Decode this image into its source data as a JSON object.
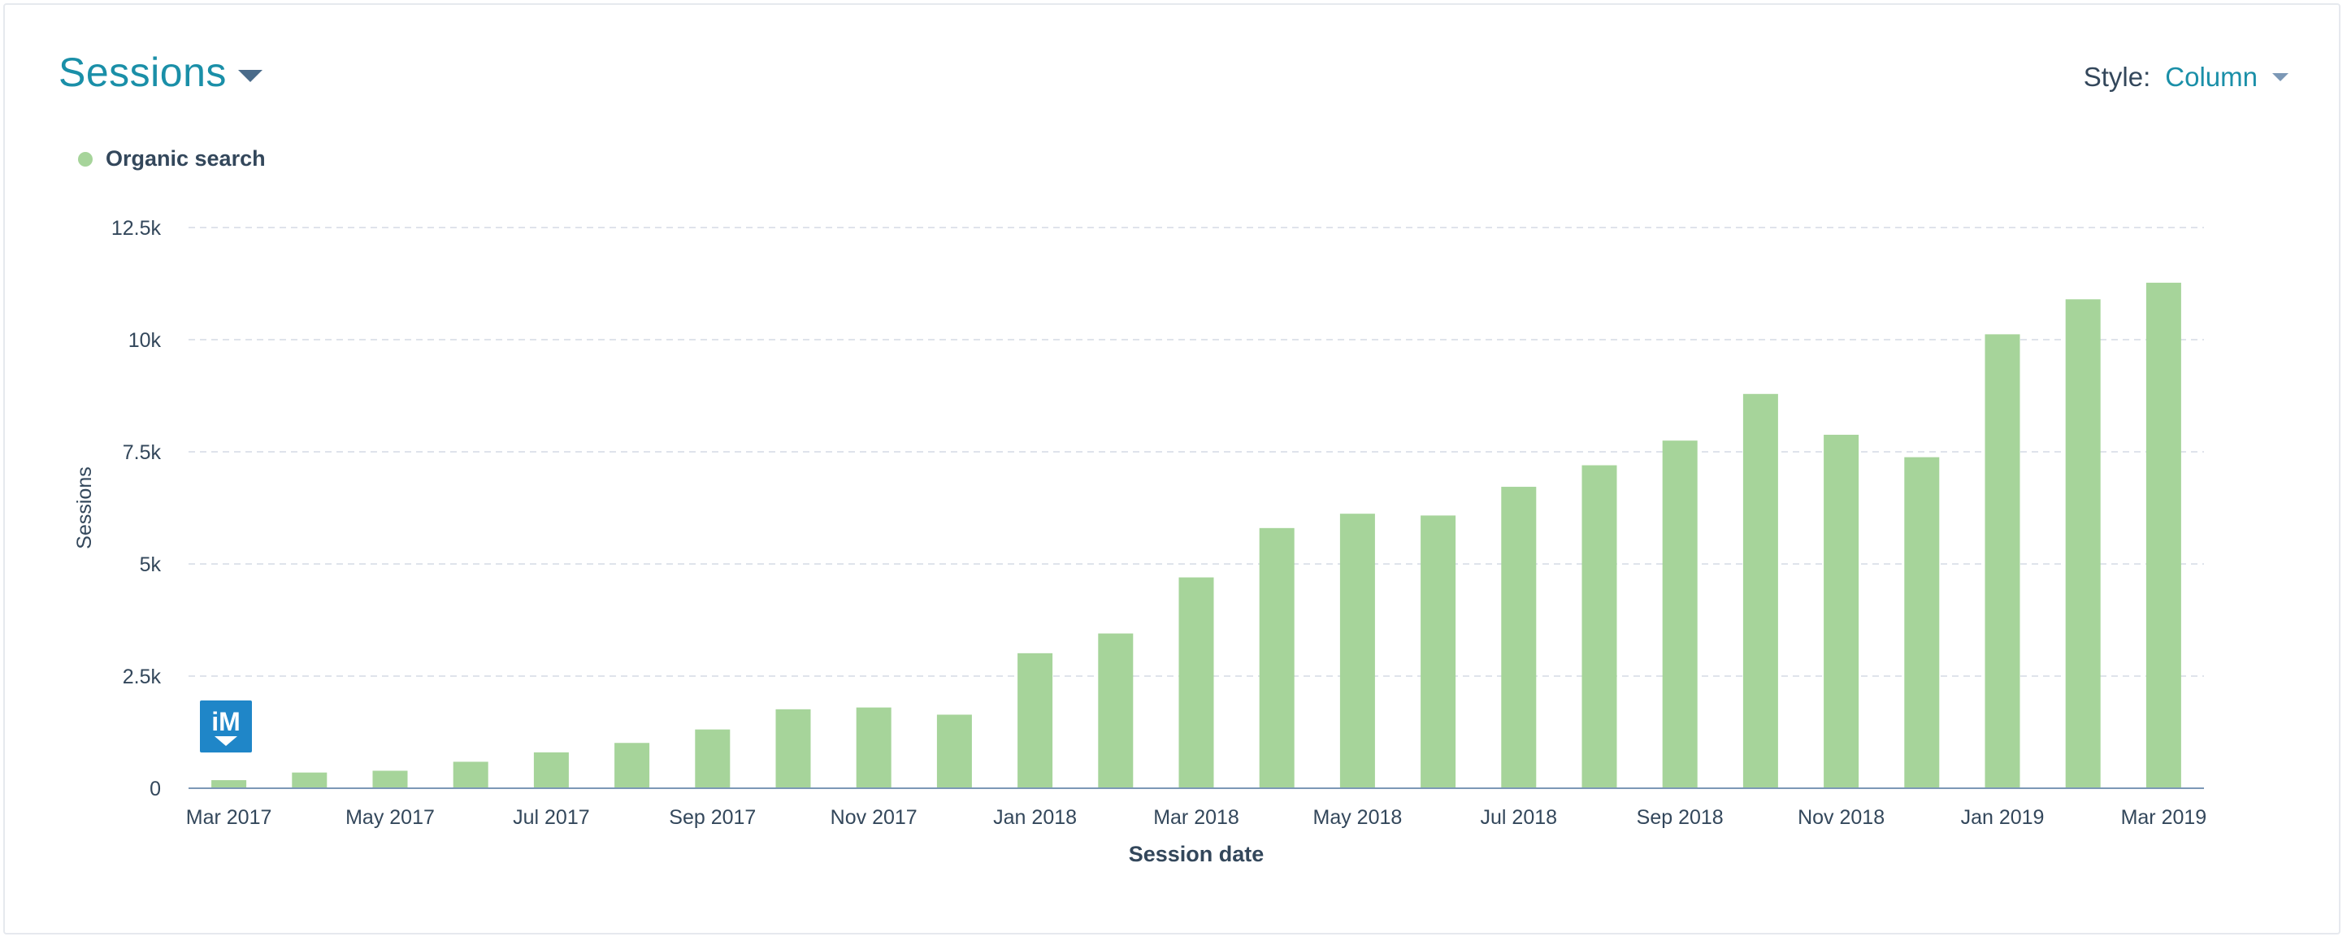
{
  "header": {
    "title": "Sessions",
    "style_label": "Style:",
    "style_value": "Column"
  },
  "colors": {
    "accent": "#1a8fa8",
    "bar": "#a6d49a",
    "grid": "#dfe3eb",
    "axis_line": "#7c98b6",
    "text": "#33475b"
  },
  "watermark": {
    "text": "iM"
  },
  "chart_data": {
    "type": "bar",
    "xlabel": "Session date",
    "ylabel": "Sessions",
    "ylim": [
      0,
      12500
    ],
    "yticks": [
      0,
      2500,
      5000,
      7500,
      10000,
      12500
    ],
    "ytick_labels": [
      "0",
      "2.5k",
      "5k",
      "7.5k",
      "10k",
      "12.5k"
    ],
    "grid": true,
    "legend_position": "top-left",
    "categories": [
      "Mar 2017",
      "Apr 2017",
      "May 2017",
      "Jun 2017",
      "Jul 2017",
      "Aug 2017",
      "Sep 2017",
      "Oct 2017",
      "Nov 2017",
      "Dec 2017",
      "Jan 2018",
      "Feb 2018",
      "Mar 2018",
      "Apr 2018",
      "May 2018",
      "Jun 2018",
      "Jul 2018",
      "Aug 2018",
      "Sep 2018",
      "Oct 2018",
      "Nov 2018",
      "Dec 2018",
      "Jan 2019",
      "Feb 2019",
      "Mar 2019"
    ],
    "xtick_labels": [
      "Mar 2017",
      "",
      "May 2017",
      "",
      "Jul 2017",
      "",
      "Sep 2017",
      "",
      "Nov 2017",
      "",
      "Jan 2018",
      "",
      "Mar 2018",
      "",
      "May 2018",
      "",
      "Jul 2018",
      "",
      "Sep 2018",
      "",
      "Nov 2018",
      "",
      "Jan 2019",
      "",
      "Mar 2019"
    ],
    "series": [
      {
        "name": "Organic search",
        "color": "#a6d49a",
        "values": [
          180,
          350,
          390,
          590,
          800,
          1010,
          1310,
          1760,
          1800,
          1640,
          3010,
          3450,
          4700,
          5800,
          6120,
          6080,
          6720,
          7200,
          7750,
          8790,
          7880,
          7380,
          10120,
          10900,
          11270
        ]
      }
    ]
  }
}
